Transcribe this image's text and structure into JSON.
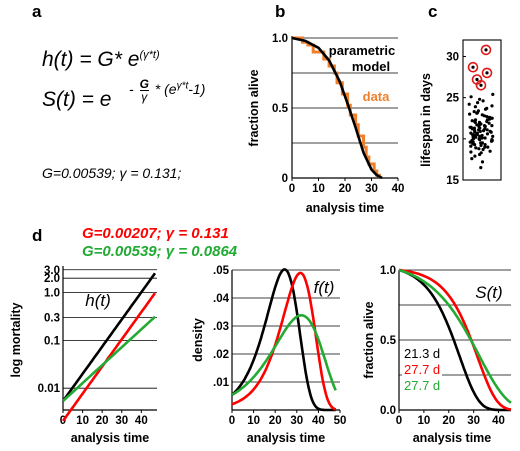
{
  "panels": {
    "a": {
      "label": "a",
      "hazard_eq": {
        "lhs": "h(t) = G* e",
        "exp": "(γ*t)"
      },
      "surv_eq": {
        "lhs": "S(t) = e",
        "exp_prefix": "-",
        "frac_num": "G",
        "frac_den": "γ",
        "exp_mid": "* (e",
        "exp_inner": "γ*t",
        "exp_tail": "-1)"
      },
      "params": "G=0.00539;  γ = 0.131;"
    },
    "b": {
      "label": "b",
      "legend_model": "parametric model",
      "legend_model_l1": "parametric",
      "legend_model_l2": "model",
      "legend_data": "data"
    },
    "c": {
      "label": "c"
    },
    "d": {
      "label": "d",
      "legend": [
        {
          "text": "G=0.00207; γ = 0.131",
          "color": "#ff0000"
        },
        {
          "text": "G=0.00539; γ = 0.0864",
          "color": "#22aa33"
        }
      ],
      "hazard_title": "h(t)",
      "density_title": "f(t)",
      "surv_title": "S(t)",
      "medians": [
        {
          "text": "21.3 d",
          "color": "#000000"
        },
        {
          "text": "27.7 d",
          "color": "#ff0000"
        },
        {
          "text": "27.7 d",
          "color": "#22aa33"
        }
      ]
    }
  },
  "chart_data": [
    {
      "id": "b",
      "type": "line",
      "xlabel": "analysis time",
      "ylabel": "fraction alive",
      "xlim": [
        0,
        40
      ],
      "ylim": [
        0,
        1
      ],
      "xticks": [
        "0",
        "10",
        "20",
        "30",
        "40"
      ],
      "yticks": [
        "0",
        "0.5",
        "1.0"
      ],
      "series": [
        {
          "name": "parametric model",
          "color": "#000000",
          "x": [
            0,
            5,
            10,
            14,
            18,
            21,
            24,
            27,
            30,
            32,
            34
          ],
          "y": [
            1.0,
            0.98,
            0.93,
            0.84,
            0.69,
            0.53,
            0.36,
            0.18,
            0.06,
            0.02,
            0.0
          ]
        },
        {
          "name": "data",
          "color": "#f07f2c",
          "step": true,
          "x": [
            0,
            4,
            6,
            8,
            10,
            12,
            14,
            16,
            17,
            19,
            21,
            22,
            24,
            25,
            27,
            28,
            29,
            31,
            32,
            33
          ],
          "y": [
            1.0,
            0.97,
            0.95,
            0.9,
            0.9,
            0.85,
            0.8,
            0.75,
            0.68,
            0.6,
            0.52,
            0.45,
            0.38,
            0.3,
            0.22,
            0.15,
            0.1,
            0.05,
            0.02,
            0.0
          ]
        }
      ]
    },
    {
      "id": "c",
      "type": "scatter",
      "ylabel": "lifespan in days",
      "ylim": [
        15,
        32
      ],
      "yticks": [
        "15",
        "20",
        "25",
        "30"
      ],
      "highlighted": [
        30.8,
        28.7,
        28.0,
        27.2,
        26.5
      ],
      "points": [
        16.5,
        17.2,
        17.6,
        17.9,
        18.1,
        18.3,
        18.4,
        18.5,
        18.7,
        18.8,
        18.9,
        19.0,
        19.0,
        19.1,
        19.2,
        19.3,
        19.3,
        19.4,
        19.5,
        19.5,
        19.6,
        19.6,
        19.7,
        19.8,
        19.8,
        19.9,
        19.9,
        20.0,
        20.0,
        20.1,
        20.1,
        20.2,
        20.2,
        20.3,
        20.3,
        20.4,
        20.4,
        20.5,
        20.5,
        20.6,
        20.6,
        20.7,
        20.7,
        20.8,
        20.8,
        20.9,
        20.9,
        21.0,
        21.0,
        21.1,
        21.1,
        21.2,
        21.2,
        21.3,
        21.3,
        21.4,
        21.4,
        21.5,
        21.5,
        21.6,
        21.6,
        21.7,
        21.7,
        21.8,
        21.8,
        21.9,
        21.9,
        22.0,
        22.0,
        22.1,
        22.1,
        22.2,
        22.3,
        22.3,
        22.4,
        22.5,
        22.5,
        22.6,
        22.7,
        22.8,
        22.9,
        23.0,
        23.1,
        23.2,
        23.3,
        23.4,
        23.6,
        23.7,
        23.9,
        24.0,
        24.2,
        24.4,
        24.6,
        24.8,
        25.1,
        25.4
      ]
    },
    {
      "id": "d-hazard",
      "type": "line",
      "log_y": true,
      "xlabel": "analysis time",
      "ylabel": "log mortality",
      "xlim": [
        0,
        48
      ],
      "ylim": [
        0.0035,
        3.6
      ],
      "xticks": [
        "0",
        "10",
        "20",
        "30",
        "40"
      ],
      "yticks": [
        "0.01",
        "0.1",
        "0.3",
        "1.0",
        "2.0",
        "3.0"
      ],
      "grid": [
        0.01,
        0.1,
        0.3,
        1.0,
        2.0,
        3.0
      ],
      "series": [
        {
          "color": "#000000",
          "G": 0.00539,
          "gamma": 0.131
        },
        {
          "color": "#ff0000",
          "G": 0.00207,
          "gamma": 0.131
        },
        {
          "color": "#22aa33",
          "G": 0.00539,
          "gamma": 0.0864
        }
      ]
    },
    {
      "id": "d-density",
      "type": "line",
      "ylabel": "density",
      "xlabel": "analysis time",
      "xlim": [
        0,
        50
      ],
      "ylim": [
        0,
        0.05
      ],
      "xticks": [
        "0",
        "10",
        "20",
        "30",
        "40",
        "50"
      ],
      "yticks": [
        ".01",
        ".02",
        ".03",
        ".04",
        ".05"
      ],
      "series": [
        {
          "color": "#000000",
          "G": 0.00539,
          "gamma": 0.131
        },
        {
          "color": "#ff0000",
          "G": 0.00207,
          "gamma": 0.131
        },
        {
          "color": "#22aa33",
          "G": 0.00539,
          "gamma": 0.0864
        }
      ]
    },
    {
      "id": "d-survival",
      "type": "line",
      "ylabel": "fraction alive",
      "xlabel": "analysis time",
      "xlim": [
        0,
        45
      ],
      "ylim": [
        0,
        1
      ],
      "xticks": [
        "0",
        "10",
        "20",
        "30",
        "40"
      ],
      "yticks": [
        "0.0",
        "0.5",
        "1.0"
      ],
      "series": [
        {
          "color": "#000000",
          "G": 0.00539,
          "gamma": 0.131
        },
        {
          "color": "#ff0000",
          "G": 0.00207,
          "gamma": 0.131
        },
        {
          "color": "#22aa33",
          "G": 0.00539,
          "gamma": 0.0864
        }
      ]
    }
  ]
}
